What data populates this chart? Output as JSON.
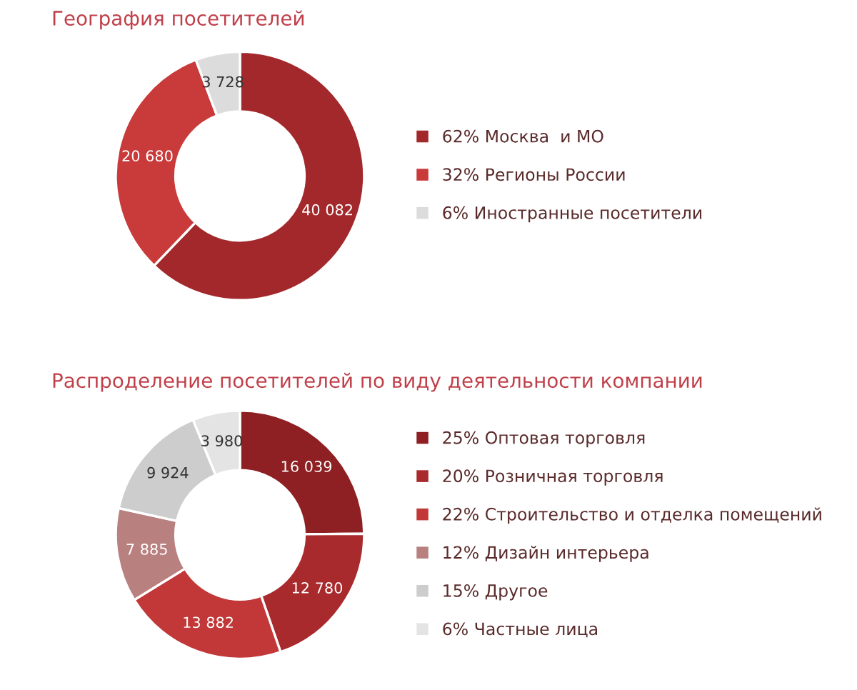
{
  "chart_data": [
    {
      "type": "donut",
      "title": "География посетителей",
      "categories": [
        "62% Москва  и МО",
        "32% Регионы России",
        "6% Иностранные посетители"
      ],
      "values": [
        40082,
        20680,
        3728
      ],
      "colors": [
        "#a3282b",
        "#c93a3a",
        "#dcdcdc"
      ],
      "data_labels": true,
      "legend": "right"
    },
    {
      "type": "donut",
      "title": "Распроделение посетителей по виду деятельности компании",
      "categories": [
        "25% Оптовая торговля",
        "20% Розничная торговля",
        "22% Строительство и отделка помещений",
        "12% Дизайн интерьера",
        "15% Другое",
        "6% Частные лица"
      ],
      "values": [
        16039,
        12780,
        13882,
        7885,
        9924,
        3980
      ],
      "colors": [
        "#8e1f22",
        "#a82a2c",
        "#c23737",
        "#b98080",
        "#cdcdcd",
        "#e4e4e4"
      ],
      "data_labels": true,
      "legend": "right"
    }
  ]
}
